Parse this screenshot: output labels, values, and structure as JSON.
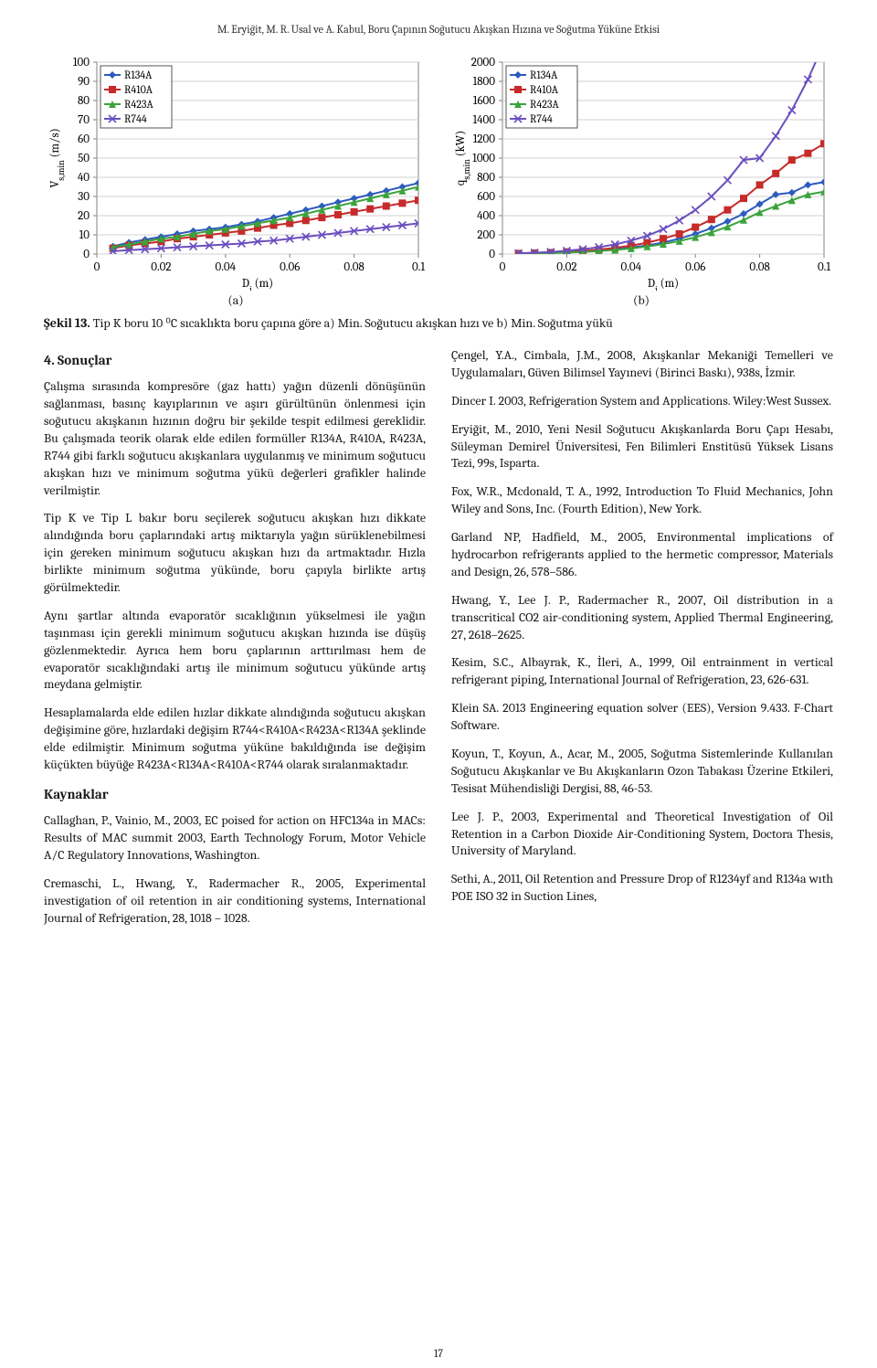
{
  "running_head": "M. Eryiğit, M. R. Usal ve A. Kabul, Boru Çapının Soğutucu Akışkan Hızına ve Soğutma Yüküne Etkisi",
  "page_number": "17",
  "chart_a": {
    "type": "line-scatter",
    "x_label": "D_i (m)",
    "y_label": "V_{s,min} (m/s)",
    "xlim": [
      0,
      0.1
    ],
    "ylim": [
      0,
      100
    ],
    "xticks": [
      0,
      0.02,
      0.04,
      0.06,
      0.08,
      0.1
    ],
    "yticks": [
      0,
      10,
      20,
      30,
      40,
      50,
      60,
      70,
      80,
      90,
      100
    ],
    "series": [
      {
        "name": "R134A",
        "color": "#2e5bbf",
        "marker": "diamond",
        "values": [
          [
            0.005,
            4
          ],
          [
            0.01,
            6
          ],
          [
            0.015,
            7.5
          ],
          [
            0.02,
            9
          ],
          [
            0.025,
            10.5
          ],
          [
            0.03,
            12
          ],
          [
            0.035,
            13
          ],
          [
            0.04,
            14
          ],
          [
            0.045,
            15.5
          ],
          [
            0.05,
            17
          ],
          [
            0.055,
            19
          ],
          [
            0.06,
            21
          ],
          [
            0.065,
            23
          ],
          [
            0.07,
            25
          ],
          [
            0.075,
            27
          ],
          [
            0.08,
            29
          ],
          [
            0.085,
            31
          ],
          [
            0.09,
            33
          ],
          [
            0.095,
            35
          ],
          [
            0.1,
            37
          ]
        ]
      },
      {
        "name": "R410A",
        "color": "#c72a2a",
        "marker": "square",
        "values": [
          [
            0.005,
            3
          ],
          [
            0.01,
            4.5
          ],
          [
            0.015,
            5.5
          ],
          [
            0.02,
            6.5
          ],
          [
            0.025,
            8
          ],
          [
            0.03,
            9
          ],
          [
            0.035,
            10
          ],
          [
            0.04,
            11
          ],
          [
            0.045,
            12
          ],
          [
            0.05,
            13.5
          ],
          [
            0.055,
            15
          ],
          [
            0.06,
            16
          ],
          [
            0.065,
            17.5
          ],
          [
            0.07,
            19
          ],
          [
            0.075,
            20.5
          ],
          [
            0.08,
            22
          ],
          [
            0.085,
            23.5
          ],
          [
            0.09,
            25
          ],
          [
            0.095,
            26.5
          ],
          [
            0.1,
            28
          ]
        ]
      },
      {
        "name": "R423A",
        "color": "#3aa33a",
        "marker": "triangle",
        "values": [
          [
            0.005,
            3.5
          ],
          [
            0.01,
            5
          ],
          [
            0.015,
            6.5
          ],
          [
            0.02,
            8
          ],
          [
            0.025,
            9
          ],
          [
            0.03,
            10.5
          ],
          [
            0.035,
            12
          ],
          [
            0.04,
            13
          ],
          [
            0.045,
            14.5
          ],
          [
            0.05,
            16
          ],
          [
            0.055,
            17.5
          ],
          [
            0.06,
            19
          ],
          [
            0.065,
            21
          ],
          [
            0.07,
            23
          ],
          [
            0.075,
            25
          ],
          [
            0.08,
            27
          ],
          [
            0.085,
            29
          ],
          [
            0.09,
            31
          ],
          [
            0.095,
            33
          ],
          [
            0.1,
            35
          ]
        ]
      },
      {
        "name": "R744",
        "color": "#6a4fbf",
        "marker": "x",
        "values": [
          [
            0.005,
            1.5
          ],
          [
            0.01,
            2
          ],
          [
            0.015,
            2.5
          ],
          [
            0.02,
            3
          ],
          [
            0.025,
            3.5
          ],
          [
            0.03,
            4
          ],
          [
            0.035,
            4.5
          ],
          [
            0.04,
            5
          ],
          [
            0.045,
            5.5
          ],
          [
            0.05,
            6.5
          ],
          [
            0.055,
            7
          ],
          [
            0.06,
            8
          ],
          [
            0.065,
            9
          ],
          [
            0.07,
            10
          ],
          [
            0.075,
            11
          ],
          [
            0.08,
            12
          ],
          [
            0.085,
            13
          ],
          [
            0.09,
            14
          ],
          [
            0.095,
            15
          ],
          [
            0.1,
            16
          ]
        ]
      }
    ],
    "legend_border": "#555555",
    "axis_color": "#808080",
    "tick_color": "#808080",
    "grid_color": "#d0d0d0",
    "line_width": 2,
    "marker_size": 4,
    "font_size": 13,
    "panel_label": "(a)"
  },
  "chart_b": {
    "type": "line-scatter",
    "x_label": "D_i (m)",
    "y_label": "q_{s,min} (kW)",
    "xlim": [
      0,
      0.1
    ],
    "ylim": [
      0,
      2000
    ],
    "xticks": [
      0,
      0.02,
      0.04,
      0.06,
      0.08,
      0.1
    ],
    "yticks": [
      0,
      200,
      400,
      600,
      800,
      1000,
      1200,
      1400,
      1600,
      1800,
      2000
    ],
    "series": [
      {
        "name": "R134A",
        "color": "#2e5bbf",
        "marker": "diamond",
        "values": [
          [
            0.005,
            5
          ],
          [
            0.01,
            8
          ],
          [
            0.015,
            12
          ],
          [
            0.02,
            18
          ],
          [
            0.025,
            26
          ],
          [
            0.03,
            36
          ],
          [
            0.035,
            50
          ],
          [
            0.04,
            68
          ],
          [
            0.045,
            90
          ],
          [
            0.05,
            120
          ],
          [
            0.055,
            160
          ],
          [
            0.06,
            210
          ],
          [
            0.065,
            270
          ],
          [
            0.07,
            340
          ],
          [
            0.075,
            420
          ],
          [
            0.08,
            520
          ],
          [
            0.085,
            620
          ],
          [
            0.09,
            640
          ],
          [
            0.095,
            720
          ],
          [
            0.1,
            750
          ]
        ]
      },
      {
        "name": "R410A",
        "color": "#c72a2a",
        "marker": "square",
        "values": [
          [
            0.005,
            6
          ],
          [
            0.01,
            10
          ],
          [
            0.015,
            15
          ],
          [
            0.02,
            22
          ],
          [
            0.025,
            32
          ],
          [
            0.03,
            46
          ],
          [
            0.035,
            64
          ],
          [
            0.04,
            88
          ],
          [
            0.045,
            118
          ],
          [
            0.05,
            160
          ],
          [
            0.055,
            210
          ],
          [
            0.06,
            280
          ],
          [
            0.065,
            360
          ],
          [
            0.07,
            460
          ],
          [
            0.075,
            580
          ],
          [
            0.08,
            720
          ],
          [
            0.085,
            840
          ],
          [
            0.09,
            980
          ],
          [
            0.095,
            1050
          ],
          [
            0.1,
            1150
          ]
        ]
      },
      {
        "name": "R423A",
        "color": "#3aa33a",
        "marker": "triangle",
        "values": [
          [
            0.005,
            4
          ],
          [
            0.01,
            7
          ],
          [
            0.015,
            10
          ],
          [
            0.02,
            15
          ],
          [
            0.025,
            22
          ],
          [
            0.03,
            31
          ],
          [
            0.035,
            43
          ],
          [
            0.04,
            58
          ],
          [
            0.045,
            78
          ],
          [
            0.05,
            103
          ],
          [
            0.055,
            135
          ],
          [
            0.06,
            175
          ],
          [
            0.065,
            225
          ],
          [
            0.07,
            285
          ],
          [
            0.075,
            355
          ],
          [
            0.08,
            435
          ],
          [
            0.085,
            500
          ],
          [
            0.09,
            560
          ],
          [
            0.095,
            620
          ],
          [
            0.1,
            650
          ]
        ]
      },
      {
        "name": "R744",
        "color": "#6a4fbf",
        "marker": "x",
        "values": [
          [
            0.005,
            8
          ],
          [
            0.01,
            14
          ],
          [
            0.015,
            22
          ],
          [
            0.02,
            34
          ],
          [
            0.025,
            50
          ],
          [
            0.03,
            72
          ],
          [
            0.035,
            100
          ],
          [
            0.04,
            140
          ],
          [
            0.045,
            190
          ],
          [
            0.05,
            260
          ],
          [
            0.055,
            350
          ],
          [
            0.06,
            460
          ],
          [
            0.065,
            600
          ],
          [
            0.07,
            770
          ],
          [
            0.075,
            980
          ],
          [
            0.08,
            1000
          ],
          [
            0.085,
            1230
          ],
          [
            0.09,
            1500
          ],
          [
            0.095,
            1820
          ],
          [
            0.1,
            2200
          ]
        ]
      }
    ],
    "legend_border": "#555555",
    "axis_color": "#808080",
    "tick_color": "#808080",
    "grid_color": "#d0d0d0",
    "line_width": 2,
    "marker_size": 4,
    "font_size": 13,
    "panel_label": "(b)"
  },
  "caption_bold": "Şekil 13.",
  "caption_rest": " Tip K boru 10 ⁰C sıcaklıkta boru çapına göre a) Min. Soğutucu akışkan hızı ve b) Min. Soğutma yükü",
  "sec_sonuclar": "4. Sonuçlar",
  "p1": "Çalışma sırasında kompresöre (gaz hattı) yağın düzenli dönüşünün sağlanması, basınç kayıplarının ve aşırı gürültünün önlenmesi için soğutucu akışkanın hızının doğru bir şekilde tespit edilmesi gereklidir. Bu çalışmada teorik olarak elde edilen formüller R134A, R410A, R423A, R744 gibi farklı soğutucu akışkanlara uygulanmış ve minimum soğutucu akışkan hızı ve minimum soğutma yükü değerleri grafikler halinde verilmiştir.",
  "p2": "Tip K ve Tip L bakır boru seçilerek soğutucu akışkan hızı dikkate alındığında boru çaplarındaki artış miktarıyla yağın sürüklenebilmesi için gereken minimum soğutucu akışkan hızı da artmaktadır. Hızla birlikte minimum soğutma yükünde, boru çapıyla birlikte artış görülmektedir.",
  "p3": "Aynı şartlar altında evaporatör sıcaklığının yükselmesi ile yağın taşınması için gerekli minimum soğutucu akışkan hızında ise düşüş gözlenmektedir. Ayrıca hem boru çaplarının arttırılması hem de evaporatör sıcaklığındaki artış ile minimum soğutucu yükünde artış meydana gelmiştir.",
  "p4": "Hesaplamalarda elde edilen hızlar dikkate alındığında soğutucu akışkan değişimine göre, hızlardaki değişim R744<R410A<R423A<R134A şeklinde elde edilmiştir. Minimum soğutma yüküne bakıldığında ise değişim küçükten büyüğe R423A<R134A<R410A<R744 olarak sıralanmaktadır.",
  "sec_kaynaklar": "Kaynaklar",
  "ref1": "Callaghan, P., Vainio, M., 2003, EC poised for action on HFC134a in MACs: Results of MAC summit 2003, Earth Technology Forum, Motor Vehicle A/C Regulatory Innovations, Washington.",
  "ref2": "Cremaschi, L., Hwang, Y., Radermacher R., 2005, Experimental investigation of oil retention in air conditioning systems, International Journal of Refrigeration, 28, 1018 – 1028.",
  "ref3": "Çengel, Y.A., Cimbala, J.M., 2008, Akışkanlar Mekaniği Temelleri ve Uygulamaları, Güven Bilimsel Yayınevi (Birinci Baskı), 938s, İzmir.",
  "ref4": "Dincer I. 2003, Refrigeration System and Applications. Wiley:West Sussex.",
  "ref5": "Eryiğit, M., 2010, Yeni Nesil Soğutucu Akışkanlarda Boru Çapı Hesabı, Süleyman Demirel Üniversitesi, Fen Bilimleri Enstitüsü Yüksek Lisans Tezi, 99s, Isparta.",
  "ref6": "Fox, W.R., Mcdonald, T. A., 1992, Introduction To Fluid Mechanics, John Wiley and Sons, Inc. (Fourth Edition), New York.",
  "ref7": "Garland NP, Hadfield, M., 2005, Environmental implications of hydrocarbon refrigerants applied to the hermetic compressor, Materials and Design, 26, 578–586.",
  "ref8": "Hwang, Y., Lee J. P., Radermacher R., 2007, Oil distribution in a transcritical CO2 air-conditioning system, Applied Thermal Engineering, 27, 2618–2625.",
  "ref9": "Kesim, S.C., Albayrak, K., İleri, A., 1999, Oil entrainment in vertical refrigerant piping, International Journal of Refrigeration, 23, 626-631.",
  "ref10": "Klein SA. 2013 Engineering equation solver (EES), Version 9.433. F-Chart Software.",
  "ref11": "Koyun, T., Koyun, A., Acar, M., 2005, Soğutma Sistemlerinde Kullanılan Soğutucu Akışkanlar ve Bu Akışkanların Ozon Tabakası Üzerine Etkileri, Tesisat Mühendisliği Dergisi, 88, 46-53.",
  "ref12": "Lee J. P., 2003, Experimental and Theoretical Investigation of Oil Retention in a Carbon Dioxide Air-Conditioning System, Doctora Thesis, University of Maryland.",
  "ref13": "Sethi, A., 2011, Oil Retention and Pressure Drop of R1234yf and R134a wıth POE ISO 32 in Suction Lines,"
}
